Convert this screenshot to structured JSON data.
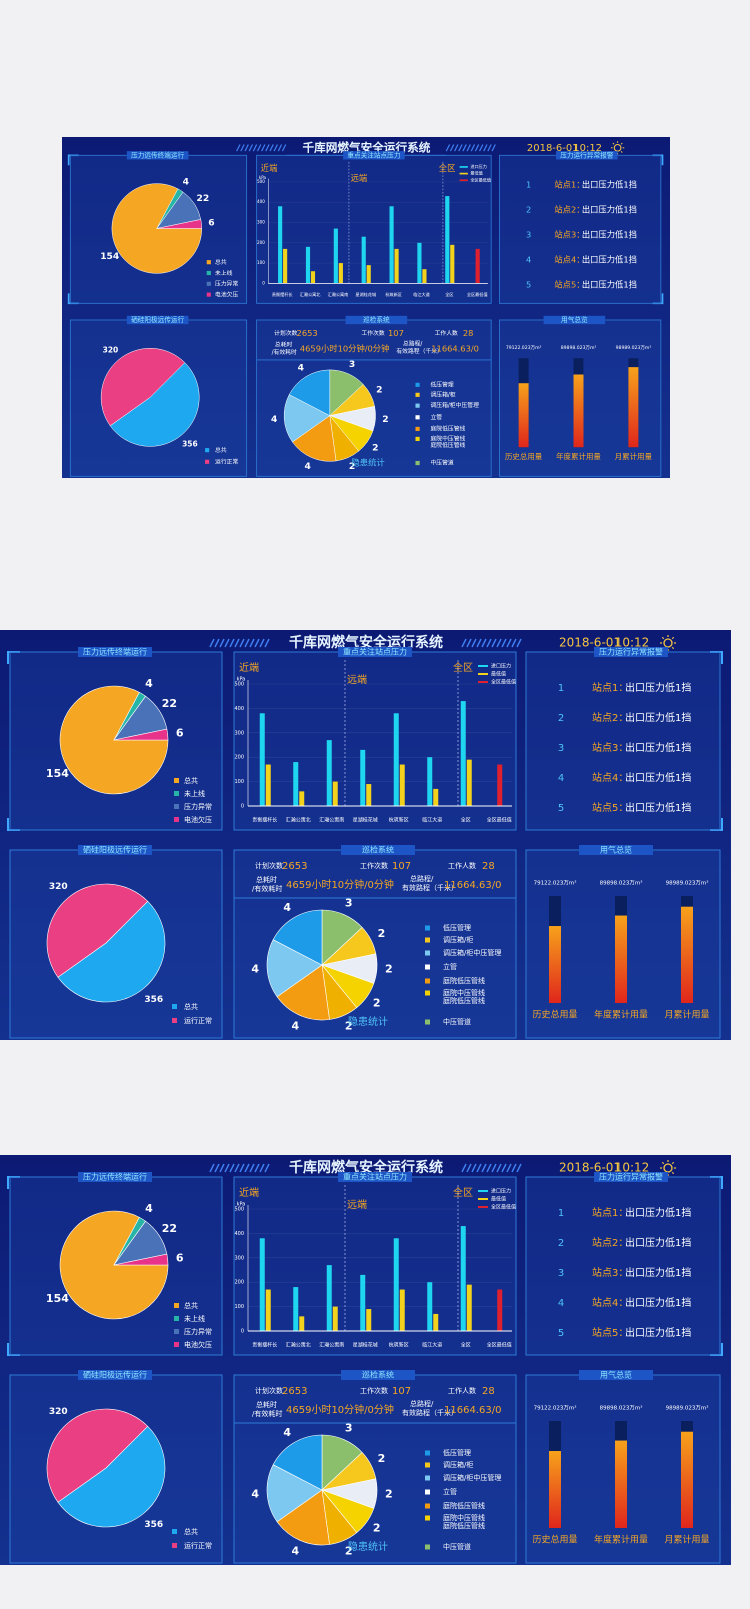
{
  "header": {
    "title": "千库网燃气安全运行系统",
    "date": "2018-6-01",
    "time": "10:12"
  },
  "terminal_panel": {
    "title": "压力远传终端运行",
    "pie": {
      "type": "pie",
      "categories": [
        "总共",
        "未上线",
        "压力异常",
        "电池欠压"
      ],
      "values": [
        154,
        4,
        22,
        6
      ],
      "colors": [
        "#f5a623",
        "#26b5a6",
        "#4a72b8",
        "#e8338a"
      ]
    }
  },
  "pressure_panel": {
    "type": "bar",
    "title": "重点关注站点压力",
    "region_labels": [
      "近端",
      "远端",
      "全区"
    ],
    "y_unit": "kPa",
    "categories": [
      "贵衡摆杆长",
      "汇瀚公寓北",
      "汇瀚公寓南",
      "星湖桂花城",
      "杭筑新区",
      "临江大道",
      "全区",
      "全区最低值"
    ],
    "series": [
      {
        "name": "进口压力",
        "color": "#1fd6f0",
        "values": [
          380,
          180,
          270,
          230,
          380,
          200,
          430,
          null
        ]
      },
      {
        "name": "最低值",
        "color": "#f2d21b",
        "values": [
          170,
          60,
          100,
          90,
          170,
          70,
          190,
          null
        ]
      },
      {
        "name": "全区最低值",
        "color": "#e0202f",
        "values": [
          null,
          null,
          null,
          null,
          null,
          null,
          null,
          170
        ]
      }
    ],
    "ylim": [
      0,
      500
    ],
    "yticks": [
      0,
      100,
      200,
      300,
      400,
      500
    ]
  },
  "alarm_panel": {
    "title": "压力运行异常报警",
    "rows": [
      {
        "index": 1,
        "station": "站点1：",
        "message": "出口压力低1挡"
      },
      {
        "index": 2,
        "station": "站点2：",
        "message": "出口压力低1挡"
      },
      {
        "index": 3,
        "station": "站点3：",
        "message": "出口压力低1挡"
      },
      {
        "index": 4,
        "station": "站点4：",
        "message": "出口压力低1挡"
      },
      {
        "index": 5,
        "station": "站点5：",
        "message": "出口压力低1挡"
      }
    ]
  },
  "anode_panel": {
    "title": "硒硅阳极远传运行",
    "pie": {
      "type": "pie",
      "categories": [
        "总共",
        "运行正常"
      ],
      "values": [
        356,
        320
      ],
      "colors": [
        "#1ea8f0",
        "#ea3f82"
      ]
    }
  },
  "inspection_panel": {
    "title": "巡检系统",
    "stats": [
      {
        "label": "计划次数",
        "value": 2653
      },
      {
        "label": "工作次数",
        "value": 107
      },
      {
        "label": "工作人数",
        "value": 28
      }
    ],
    "time_label": [
      "总耗时",
      "/有效耗时"
    ],
    "time_value": "4659小时10分钟/0分钟",
    "distance_label": [
      "总路程/",
      "有效路程（千米）"
    ],
    "distance_value": "11664.63/0",
    "hazard": {
      "type": "pie",
      "title": "隐患统计",
      "values": [
        3,
        2,
        2,
        2,
        2,
        4,
        4,
        4
      ],
      "colors": [
        "#8cbf6b",
        "#f6c71c",
        "#e9eef6",
        "#f5d300",
        "#f0b000",
        "#f39c12",
        "#7cc8f0",
        "#1e9be8"
      ],
      "legend": [
        {
          "name": [
            "低压管理"
          ],
          "color": "#1e9be8"
        },
        {
          "name": [
            "调压箱/柜"
          ],
          "color": "#f6c71c"
        },
        {
          "name": [
            "调压箱/柜中压管理"
          ],
          "color": "#7cc8f0"
        },
        {
          "name": [
            "立管"
          ],
          "color": "#ffffff"
        },
        {
          "name": [
            "庭院低压管线"
          ],
          "color": "#f39c12"
        },
        {
          "name": [
            "庭院中压管线",
            "庭院低压管线"
          ],
          "color": "#f5d300"
        },
        {
          "name": [
            "中压管道"
          ],
          "color": "#8cbf6b"
        }
      ]
    }
  },
  "usage_panel": {
    "type": "bar",
    "title": "用气总览",
    "categories": [
      "历史总用量",
      "年度累计用量",
      "月累计用量"
    ],
    "values": [
      79122.023,
      89898.023,
      98989.023
    ],
    "value_labels": [
      "79122.023万m³",
      "89898.023万m³",
      "98989.023万m³"
    ]
  }
}
